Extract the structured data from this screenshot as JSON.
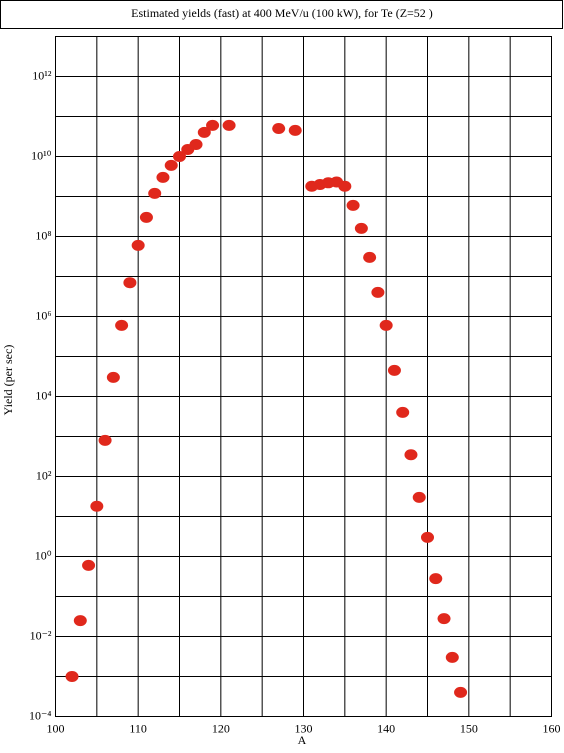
{
  "chart_data": {
    "type": "scatter",
    "title": "Estimated yields (fast) at 400 MeV/u (100 kW), for Te (Z=52 )",
    "x_label": "A",
    "y_label": "Yield (per sec)",
    "log_y": true,
    "grid": true,
    "color": "#e0281c",
    "x": [
      102,
      103,
      104,
      105,
      106,
      107,
      108,
      109,
      110,
      111,
      112,
      113,
      114,
      115,
      116,
      117,
      118,
      119,
      121,
      127,
      129,
      131,
      132,
      133,
      134,
      135,
      136,
      137,
      138,
      139,
      140,
      141,
      142,
      143,
      144,
      145,
      146,
      147,
      148,
      149
    ],
    "values": [
      0.001,
      0.025,
      0.6,
      18,
      800,
      30000,
      600000,
      7000000,
      60000000,
      300000000,
      1200000000,
      3000000000,
      6000000000,
      10000000000,
      15000000000,
      20000000000,
      40000000000,
      60000000000,
      60000000000,
      50000000000,
      45000000000,
      1800000000,
      2000000000,
      2200000000,
      2300000000,
      1800000000,
      600000000,
      160000000,
      30000000,
      4000000,
      600000,
      45000,
      4000,
      350,
      30,
      3,
      0.28,
      0.028,
      0.003,
      0.0004
    ],
    "xlim": [
      100,
      160
    ],
    "xticks": [
      100,
      110,
      120,
      130,
      140,
      150,
      160
    ],
    "x_minor_ticks": [
      105,
      115,
      125,
      135,
      145,
      155
    ],
    "ylim": [
      0.0001,
      10000000000000
    ],
    "yticks": [
      {
        "value": 0.0001,
        "label": "10⁻⁴"
      },
      {
        "value": 0.01,
        "label": "10⁻²"
      },
      {
        "value": 1,
        "label": "10⁰"
      },
      {
        "value": 100,
        "label": "10²"
      },
      {
        "value": 10000,
        "label": "10⁴"
      },
      {
        "value": 1000000,
        "label": "10⁶"
      },
      {
        "value": 100000000,
        "label": "10⁸"
      },
      {
        "value": 10000000000,
        "label": "10¹⁰"
      },
      {
        "value": 1000000000000,
        "label": "10¹²"
      }
    ],
    "y_minor_ticks": [
      0.001,
      0.1,
      10,
      1000,
      100000,
      10000000,
      1000000000,
      100000000000,
      10000000000000
    ]
  }
}
